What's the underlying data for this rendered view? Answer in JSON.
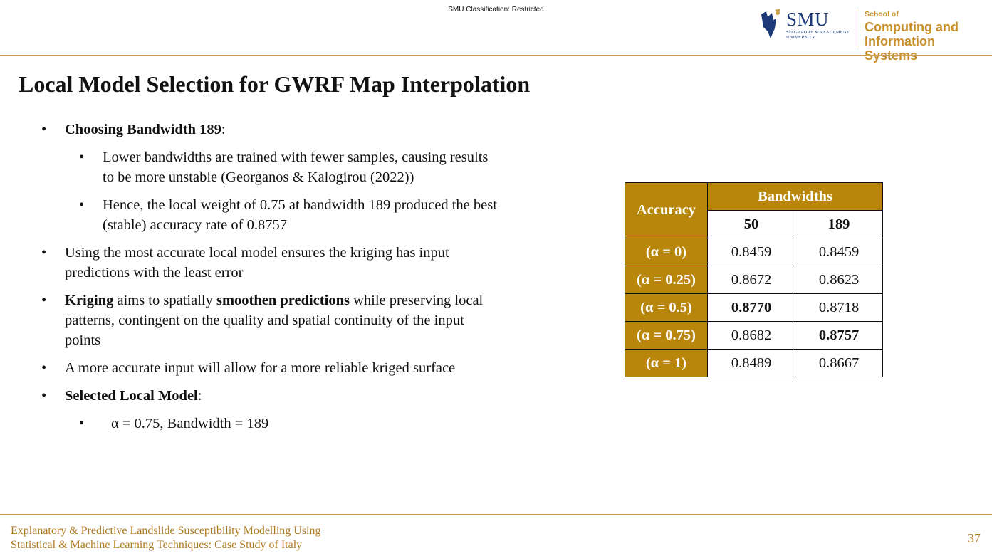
{
  "header": {
    "classification": "SMU Classification: Restricted",
    "logo": {
      "smu": "SMU",
      "smu_sub_line1": "SINGAPORE MANAGEMENT",
      "smu_sub_line2": "UNIVERSITY",
      "school_small": "School of",
      "school_line1": "Computing and",
      "school_line2": "Information Systems"
    }
  },
  "slide": {
    "title": "Local Model Selection for GWRF Map Interpolation",
    "bullets": {
      "b1_bold": "Choosing Bandwidth 189",
      "b1_rest": ":",
      "b1_sub1": "Lower bandwidths are trained with fewer samples, causing results to be more unstable (Georganos & Kalogirou (2022))",
      "b1_sub2": "Hence, the local weight of 0.75 at bandwidth 189 produced the best (stable) accuracy rate of 0.8757",
      "b2": "Using the most accurate local model ensures the kriging has input predictions with the least error",
      "b3_bold1": "Kriging",
      "b3_mid": " aims to spatially ",
      "b3_bold2": "smoothen predictions",
      "b3_rest": " while preserving local patterns, contingent on the quality and spatial continuity of the input points",
      "b4": "A more accurate input will allow for a more reliable kriged surface",
      "b5_bold": "Selected Local Model",
      "b5_rest": ":",
      "b5_sub1": "α = 0.75, Bandwidth = 189"
    },
    "table": {
      "corner": "Accuracy",
      "group_header": "Bandwidths",
      "columns": [
        "50",
        "189"
      ],
      "rows": [
        {
          "label": "(α = 0)",
          "v1": "0.8459",
          "v2": "0.8459"
        },
        {
          "label": "(α = 0.25)",
          "v1": "0.8672",
          "v2": "0.8623"
        },
        {
          "label": "(α = 0.5)",
          "v1": "0.8770",
          "v2": "0.8718"
        },
        {
          "label": "(α = 0.75)",
          "v1": "0.8682",
          "v2": "0.8757"
        },
        {
          "label": "(α = 1)",
          "v1": "0.8489",
          "v2": "0.8667"
        }
      ]
    }
  },
  "footer": {
    "line1": "Explanatory & Predictive Landslide Susceptibility Modelling Using",
    "line2": "Statistical & Machine Learning Techniques: Case Study of Italy",
    "page": "37"
  },
  "colors": {
    "accent_gold": "#c9a24a",
    "table_header": "#b8860b",
    "smu_blue": "#1d3a78",
    "footer_text": "#b07a1e"
  },
  "icons": {
    "smu_logo": "smu-lion-icon"
  }
}
